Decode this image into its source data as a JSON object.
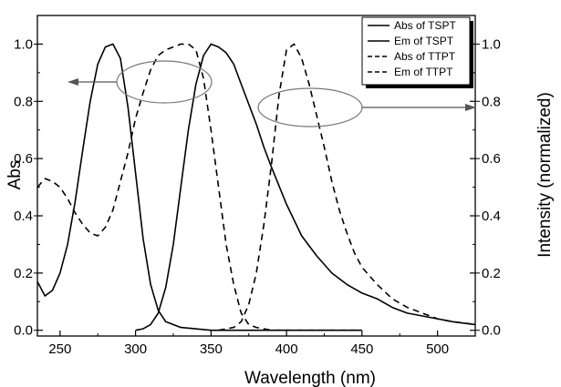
{
  "chart_data": {
    "type": "line",
    "xlabel": "Wavelength (nm)",
    "ylabel": "Abs",
    "ylabel_right": "Intensity (normalized)",
    "xlim": [
      235,
      525
    ],
    "ylim": [
      -0.02,
      1.1
    ],
    "ylim_right": [
      -0.02,
      1.1
    ],
    "x_ticks": [
      "250",
      "300",
      "350",
      "400",
      "450",
      "500"
    ],
    "y_ticks": [
      "0.0",
      "0.2",
      "0.4",
      "0.6",
      "0.8",
      "1.0"
    ],
    "y_ticks_right": [
      "0.0",
      "0.2",
      "0.4",
      "0.6",
      "0.8",
      "1.0"
    ],
    "grid": false,
    "legend_position": "top-right",
    "series": [
      {
        "name": "Abs of TSPT",
        "style": "solid",
        "axis": "left",
        "points": [
          [
            235,
            0.17
          ],
          [
            240,
            0.12
          ],
          [
            245,
            0.14
          ],
          [
            250,
            0.2
          ],
          [
            255,
            0.3
          ],
          [
            260,
            0.45
          ],
          [
            265,
            0.63
          ],
          [
            270,
            0.8
          ],
          [
            275,
            0.93
          ],
          [
            280,
            0.99
          ],
          [
            285,
            1.0
          ],
          [
            290,
            0.95
          ],
          [
            295,
            0.78
          ],
          [
            300,
            0.55
          ],
          [
            305,
            0.32
          ],
          [
            310,
            0.16
          ],
          [
            315,
            0.07
          ],
          [
            320,
            0.03
          ],
          [
            330,
            0.01
          ],
          [
            350,
            0.0
          ],
          [
            400,
            0.0
          ],
          [
            450,
            0.0
          ]
        ]
      },
      {
        "name": "Em of TSPT",
        "style": "solid",
        "axis": "right",
        "points": [
          [
            300,
            0.0
          ],
          [
            305,
            0.005
          ],
          [
            310,
            0.02
          ],
          [
            315,
            0.06
          ],
          [
            320,
            0.15
          ],
          [
            325,
            0.3
          ],
          [
            330,
            0.5
          ],
          [
            335,
            0.7
          ],
          [
            340,
            0.86
          ],
          [
            345,
            0.96
          ],
          [
            350,
            1.0
          ],
          [
            355,
            0.99
          ],
          [
            360,
            0.97
          ],
          [
            365,
            0.93
          ],
          [
            370,
            0.86
          ],
          [
            375,
            0.79
          ],
          [
            380,
            0.72
          ],
          [
            385,
            0.64
          ],
          [
            390,
            0.57
          ],
          [
            400,
            0.44
          ],
          [
            410,
            0.33
          ],
          [
            420,
            0.26
          ],
          [
            430,
            0.2
          ],
          [
            440,
            0.16
          ],
          [
            450,
            0.13
          ],
          [
            460,
            0.11
          ],
          [
            470,
            0.08
          ],
          [
            480,
            0.06
          ],
          [
            490,
            0.05
          ],
          [
            500,
            0.04
          ],
          [
            510,
            0.03
          ],
          [
            525,
            0.02
          ]
        ]
      },
      {
        "name": "Abs of TTPT",
        "style": "dashed",
        "axis": "left",
        "points": [
          [
            235,
            0.5
          ],
          [
            240,
            0.53
          ],
          [
            245,
            0.52
          ],
          [
            250,
            0.5
          ],
          [
            255,
            0.46
          ],
          [
            260,
            0.41
          ],
          [
            265,
            0.37
          ],
          [
            270,
            0.34
          ],
          [
            275,
            0.33
          ],
          [
            280,
            0.36
          ],
          [
            285,
            0.42
          ],
          [
            290,
            0.52
          ],
          [
            295,
            0.62
          ],
          [
            300,
            0.74
          ],
          [
            305,
            0.83
          ],
          [
            310,
            0.91
          ],
          [
            315,
            0.96
          ],
          [
            320,
            0.98
          ],
          [
            325,
            0.99
          ],
          [
            330,
            1.0
          ],
          [
            335,
            1.0
          ],
          [
            340,
            0.98
          ],
          [
            345,
            0.88
          ],
          [
            350,
            0.7
          ],
          [
            355,
            0.5
          ],
          [
            360,
            0.3
          ],
          [
            365,
            0.16
          ],
          [
            370,
            0.06
          ],
          [
            375,
            0.02
          ],
          [
            380,
            0.01
          ],
          [
            390,
            0.0
          ],
          [
            450,
            0.0
          ]
        ]
      },
      {
        "name": "Em of TTPT",
        "style": "dashed",
        "axis": "right",
        "points": [
          [
            355,
            0.0
          ],
          [
            360,
            0.005
          ],
          [
            365,
            0.01
          ],
          [
            370,
            0.03
          ],
          [
            375,
            0.09
          ],
          [
            380,
            0.2
          ],
          [
            385,
            0.37
          ],
          [
            390,
            0.58
          ],
          [
            395,
            0.82
          ],
          [
            400,
            0.98
          ],
          [
            405,
            1.0
          ],
          [
            410,
            0.95
          ],
          [
            415,
            0.86
          ],
          [
            420,
            0.75
          ],
          [
            425,
            0.64
          ],
          [
            430,
            0.52
          ],
          [
            435,
            0.42
          ],
          [
            440,
            0.34
          ],
          [
            445,
            0.27
          ],
          [
            450,
            0.22
          ],
          [
            460,
            0.16
          ],
          [
            470,
            0.11
          ],
          [
            480,
            0.08
          ],
          [
            490,
            0.06
          ],
          [
            500,
            0.04
          ],
          [
            510,
            0.03
          ],
          [
            525,
            0.02
          ]
        ]
      }
    ]
  }
}
